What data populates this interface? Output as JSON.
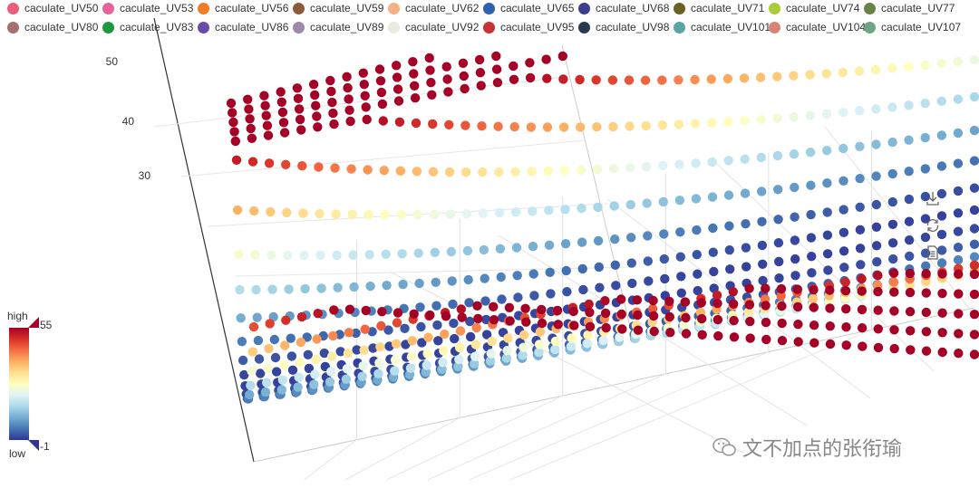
{
  "colors": {
    "ramp": [
      "#313695",
      "#4575b4",
      "#74add1",
      "#abd9e9",
      "#e0f3f8",
      "#ffffbf",
      "#fee090",
      "#fdae61",
      "#f46d43",
      "#d73027",
      "#a50026"
    ],
    "legend": [
      "#e8607a",
      "#e8609c",
      "#f07e26",
      "#8c5a3c",
      "#f5b183",
      "#2e62b0",
      "#3d3f8c",
      "#6b6124",
      "#aacc3a",
      "#6a8246",
      "#a5706e",
      "#1f9640",
      "#6b4ba8",
      "#9c8aa8",
      "#ebeae0",
      "#c93232",
      "#273a4e",
      "#5aa4a6",
      "#d68575",
      "#6ea586"
    ]
  },
  "legend": {
    "items": [
      "caculate_UV50",
      "caculate_UV53",
      "caculate_UV56",
      "caculate_UV59",
      "caculate_UV62",
      "caculate_UV65",
      "caculate_UV68",
      "caculate_UV71",
      "caculate_UV74",
      "caculate_UV77",
      "caculate_UV80",
      "caculate_UV83",
      "caculate_UV86",
      "caculate_UV89",
      "caculate_UV92",
      "caculate_UV95",
      "caculate_UV98",
      "caculate_UV101",
      "caculate_UV104",
      "caculate_UV107"
    ]
  },
  "visual_map": {
    "high_label": "high",
    "low_label": "low",
    "max": "55",
    "min": "-1"
  },
  "toolbox": [
    "download-icon",
    "restore-icon",
    "data-view-icon"
  ],
  "watermark": {
    "text": "文不加点的张衔瑜"
  },
  "chart_data": {
    "type": "scatter3D",
    "series_count": 20,
    "z_axis_ticks": [
      "30",
      "40",
      "50"
    ],
    "zlim": [
      -1,
      55
    ],
    "visual_map": {
      "min": -1,
      "max": 55
    },
    "shape": "valley surface of points: low values (about 0) along the trough, rising to about 55 along both far edges"
  }
}
